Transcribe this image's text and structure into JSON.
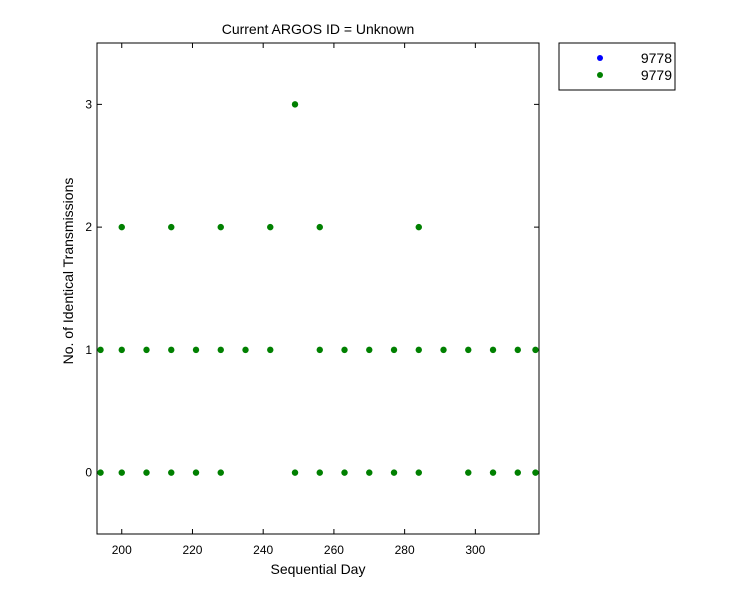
{
  "chart_data": {
    "type": "scatter",
    "title": "Current ARGOS ID = Unknown",
    "xlabel": "Sequential Day",
    "ylabel": "No. of Identical Transmissions",
    "xlim": [
      193,
      318
    ],
    "ylim": [
      -0.5,
      3.5
    ],
    "xticks": [
      200,
      220,
      240,
      260,
      280,
      300
    ],
    "yticks": [
      0,
      1,
      2,
      3
    ],
    "grid": false,
    "legend_position": "outside-top-right",
    "series": [
      {
        "name": "9778",
        "color": "#0000ff",
        "points": []
      },
      {
        "name": "9779",
        "color": "#008000",
        "points": [
          [
            194,
            1
          ],
          [
            194,
            0
          ],
          [
            200,
            2
          ],
          [
            200,
            1
          ],
          [
            200,
            0
          ],
          [
            207,
            1
          ],
          [
            207,
            0
          ],
          [
            214,
            2
          ],
          [
            214,
            1
          ],
          [
            214,
            0
          ],
          [
            221,
            1
          ],
          [
            221,
            0
          ],
          [
            228,
            2
          ],
          [
            228,
            1
          ],
          [
            228,
            0
          ],
          [
            235,
            1
          ],
          [
            242,
            2
          ],
          [
            242,
            1
          ],
          [
            249,
            3
          ],
          [
            249,
            0
          ],
          [
            256,
            2
          ],
          [
            256,
            1
          ],
          [
            256,
            0
          ],
          [
            263,
            1
          ],
          [
            263,
            0
          ],
          [
            270,
            1
          ],
          [
            270,
            0
          ],
          [
            277,
            1
          ],
          [
            277,
            0
          ],
          [
            284,
            2
          ],
          [
            284,
            1
          ],
          [
            284,
            0
          ],
          [
            291,
            1
          ],
          [
            298,
            1
          ],
          [
            298,
            0
          ],
          [
            305,
            1
          ],
          [
            305,
            0
          ],
          [
            312,
            1
          ],
          [
            312,
            0
          ],
          [
            317,
            1
          ],
          [
            317,
            0
          ]
        ]
      }
    ]
  }
}
